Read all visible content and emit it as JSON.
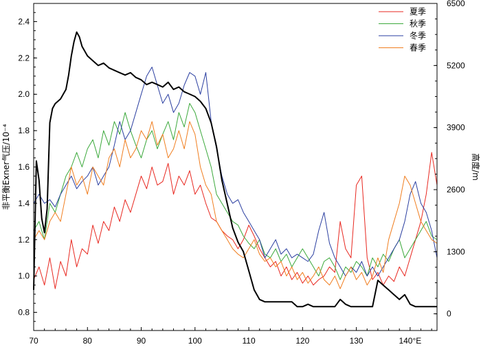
{
  "chart_data": {
    "type": "line",
    "xlabel": "",
    "x_unit_suffix": "°E",
    "ylabel_left": "非平衡Exner气压/10⁻⁴",
    "ylabel_right": "高度/m",
    "xlim": [
      70,
      145
    ],
    "ylim_left": [
      0.7,
      2.5
    ],
    "ylim_right": [
      -350,
      6500
    ],
    "x_ticks": [
      "70",
      "80",
      "90",
      "100",
      "110",
      "120",
      "130",
      "140"
    ],
    "y_left_ticks": [
      "0.8",
      "1.0",
      "1.2",
      "1.4",
      "1.6",
      "1.8",
      "2.0",
      "2.2",
      "2.4"
    ],
    "y_right_ticks": [
      "0",
      "1300",
      "2600",
      "3900",
      "5200",
      "6500"
    ],
    "legend_position": "top-right",
    "series": [
      {
        "name": "夏季",
        "color": "#e8271f",
        "axis": "left",
        "x": [
          70,
          71,
          72,
          73,
          74,
          75,
          76,
          77,
          78,
          79,
          80,
          81,
          82,
          83,
          84,
          85,
          86,
          87,
          88,
          89,
          90,
          91,
          92,
          93,
          94,
          95,
          96,
          97,
          98,
          99,
          100,
          101,
          102,
          103,
          104,
          105,
          106,
          107,
          108,
          109,
          110,
          111,
          112,
          113,
          114,
          115,
          116,
          117,
          118,
          119,
          120,
          121,
          122,
          123,
          124,
          125,
          126,
          127,
          128,
          129,
          130,
          131,
          132,
          133,
          134,
          135,
          136,
          137,
          138,
          139,
          140,
          141,
          142,
          143,
          144,
          145
        ],
        "y": [
          0.98,
          1.05,
          0.95,
          1.1,
          0.93,
          1.08,
          1.0,
          1.2,
          1.05,
          1.15,
          1.12,
          1.28,
          1.18,
          1.3,
          1.25,
          1.38,
          1.3,
          1.42,
          1.35,
          1.45,
          1.55,
          1.48,
          1.6,
          1.5,
          1.52,
          1.62,
          1.45,
          1.55,
          1.5,
          1.58,
          1.45,
          1.5,
          1.4,
          1.32,
          1.3,
          1.25,
          1.22,
          1.2,
          1.15,
          1.2,
          1.28,
          1.22,
          1.15,
          1.1,
          1.05,
          1.08,
          1.0,
          1.05,
          0.98,
          1.02,
          0.96,
          1.0,
          0.95,
          0.98,
          1.0,
          1.05,
          1.02,
          1.3,
          1.15,
          1.1,
          1.5,
          1.55,
          1.1,
          0.98,
          1.02,
          0.95,
          1.0,
          0.97,
          1.05,
          1.0,
          1.1,
          1.2,
          1.3,
          1.45,
          1.68,
          1.5
        ]
      },
      {
        "name": "秋季",
        "color": "#3aa83a",
        "axis": "left",
        "x": [
          70,
          71,
          72,
          73,
          74,
          75,
          76,
          77,
          78,
          79,
          80,
          81,
          82,
          83,
          84,
          85,
          86,
          87,
          88,
          89,
          90,
          91,
          92,
          93,
          94,
          95,
          96,
          97,
          98,
          99,
          100,
          101,
          102,
          103,
          104,
          105,
          106,
          107,
          108,
          109,
          110,
          111,
          112,
          113,
          114,
          115,
          116,
          117,
          118,
          119,
          120,
          121,
          122,
          123,
          124,
          125,
          126,
          127,
          128,
          129,
          130,
          131,
          132,
          133,
          134,
          135,
          136,
          137,
          138,
          139,
          140,
          141,
          142,
          143,
          144,
          145
        ],
        "y": [
          1.25,
          1.3,
          1.2,
          1.4,
          1.35,
          1.45,
          1.55,
          1.6,
          1.68,
          1.6,
          1.7,
          1.75,
          1.65,
          1.8,
          1.72,
          1.85,
          1.78,
          1.9,
          1.8,
          1.72,
          1.65,
          1.75,
          1.8,
          1.7,
          1.78,
          1.85,
          1.75,
          1.9,
          1.82,
          1.95,
          1.9,
          1.8,
          1.7,
          1.6,
          1.45,
          1.4,
          1.35,
          1.3,
          1.28,
          1.22,
          1.18,
          1.15,
          1.2,
          1.12,
          1.1,
          1.15,
          1.08,
          1.12,
          1.05,
          1.1,
          1.15,
          1.1,
          1.05,
          1.0,
          1.08,
          1.1,
          1.05,
          0.98,
          1.05,
          1.02,
          1.08,
          1.05,
          1.0,
          1.1,
          1.05,
          1.12,
          1.08,
          1.15,
          1.2,
          1.1,
          1.15,
          1.2,
          1.25,
          1.3,
          1.22,
          1.2
        ]
      },
      {
        "name": "冬季",
        "color": "#2a3ea0",
        "axis": "left",
        "x": [
          70,
          71,
          72,
          73,
          74,
          75,
          76,
          77,
          78,
          79,
          80,
          81,
          82,
          83,
          84,
          85,
          86,
          87,
          88,
          89,
          90,
          91,
          92,
          93,
          94,
          95,
          96,
          97,
          98,
          99,
          100,
          101,
          102,
          103,
          104,
          105,
          106,
          107,
          108,
          109,
          110,
          111,
          112,
          113,
          114,
          115,
          116,
          117,
          118,
          119,
          120,
          121,
          122,
          123,
          124,
          125,
          126,
          127,
          128,
          129,
          130,
          131,
          132,
          133,
          134,
          135,
          136,
          137,
          138,
          139,
          140,
          141,
          142,
          143,
          144,
          145
        ],
        "y": [
          1.4,
          1.45,
          1.4,
          1.42,
          1.38,
          1.45,
          1.5,
          1.55,
          1.48,
          1.52,
          1.55,
          1.6,
          1.5,
          1.55,
          1.6,
          1.72,
          1.85,
          1.75,
          1.8,
          1.9,
          2.0,
          2.1,
          2.15,
          2.05,
          1.95,
          2.0,
          1.9,
          1.95,
          2.05,
          2.12,
          2.1,
          2.0,
          2.12,
          1.85,
          1.7,
          1.55,
          1.45,
          1.4,
          1.42,
          1.35,
          1.3,
          1.25,
          1.2,
          1.1,
          1.15,
          1.2,
          1.12,
          1.15,
          1.1,
          1.12,
          1.1,
          1.08,
          1.12,
          1.25,
          1.35,
          1.18,
          1.1,
          1.05,
          1.0,
          1.05,
          1.02,
          1.08,
          1.0,
          1.05,
          1.0,
          1.05,
          1.1,
          1.15,
          1.2,
          1.3,
          1.45,
          1.52,
          1.4,
          1.35,
          1.25,
          1.1
        ]
      },
      {
        "name": "春季",
        "color": "#f07d1e",
        "axis": "left",
        "x": [
          70,
          71,
          72,
          73,
          74,
          75,
          76,
          77,
          78,
          79,
          80,
          81,
          82,
          83,
          84,
          85,
          86,
          87,
          88,
          89,
          90,
          91,
          92,
          93,
          94,
          95,
          96,
          97,
          98,
          99,
          100,
          101,
          102,
          103,
          104,
          105,
          106,
          107,
          108,
          109,
          110,
          111,
          112,
          113,
          114,
          115,
          116,
          117,
          118,
          119,
          120,
          121,
          122,
          123,
          124,
          125,
          126,
          127,
          128,
          129,
          130,
          131,
          132,
          133,
          134,
          135,
          136,
          137,
          138,
          139,
          140,
          141,
          142,
          143,
          144,
          145
        ],
        "y": [
          1.2,
          1.25,
          1.2,
          1.3,
          1.35,
          1.3,
          1.45,
          1.6,
          1.5,
          1.55,
          1.45,
          1.6,
          1.55,
          1.5,
          1.65,
          1.7,
          1.6,
          1.75,
          1.65,
          1.7,
          1.8,
          1.75,
          1.85,
          1.72,
          1.78,
          1.65,
          1.7,
          1.8,
          1.7,
          1.85,
          1.78,
          1.6,
          1.5,
          1.45,
          1.3,
          1.25,
          1.2,
          1.15,
          1.12,
          1.1,
          1.15,
          1.2,
          1.12,
          1.08,
          1.1,
          1.05,
          1.08,
          1.0,
          1.05,
          0.98,
          1.02,
          0.96,
          1.0,
          1.05,
          0.98,
          0.95,
          1.0,
          0.93,
          1.0,
          1.05,
          0.98,
          1.02,
          0.95,
          1.0,
          1.1,
          1.02,
          1.2,
          1.3,
          1.4,
          1.55,
          1.5,
          1.4,
          1.3,
          1.25,
          1.2,
          1.18
        ]
      },
      {
        "name": "",
        "color": "#000000",
        "axis": "right",
        "x": [
          70,
          70.5,
          71,
          71.5,
          72,
          72.5,
          73,
          73.5,
          74,
          75,
          76,
          76.5,
          77,
          77.5,
          78,
          78.5,
          79,
          80,
          81,
          82,
          83,
          84,
          85,
          86,
          87,
          88,
          89,
          90,
          91,
          92,
          93,
          94,
          95,
          96,
          97,
          98,
          99,
          100,
          101,
          102,
          103,
          104,
          105,
          106,
          107,
          108,
          109,
          110,
          110.5,
          111,
          112,
          113,
          114,
          115,
          116,
          117,
          118,
          119,
          120,
          121,
          122,
          123,
          124,
          125,
          126,
          127,
          128,
          129,
          130,
          131,
          132,
          133,
          134,
          135,
          136,
          137,
          138,
          139,
          140,
          141,
          142,
          143,
          144,
          145
        ],
        "y": [
          500,
          3200,
          2800,
          2000,
          1700,
          2200,
          4000,
          4300,
          4400,
          4500,
          4700,
          5000,
          5400,
          5700,
          5900,
          5800,
          5600,
          5400,
          5300,
          5200,
          5250,
          5150,
          5100,
          5050,
          5000,
          5050,
          4950,
          4900,
          4800,
          4850,
          4800,
          4750,
          4850,
          4700,
          4750,
          4650,
          4600,
          4550,
          4450,
          4300,
          4000,
          3500,
          2800,
          2300,
          1800,
          1500,
          1300,
          900,
          700,
          500,
          300,
          250,
          250,
          250,
          250,
          250,
          250,
          150,
          150,
          200,
          150,
          150,
          150,
          150,
          150,
          300,
          200,
          150,
          150,
          150,
          150,
          150,
          700,
          600,
          500,
          400,
          300,
          400,
          200,
          150,
          150,
          150,
          150,
          150
        ]
      }
    ]
  }
}
